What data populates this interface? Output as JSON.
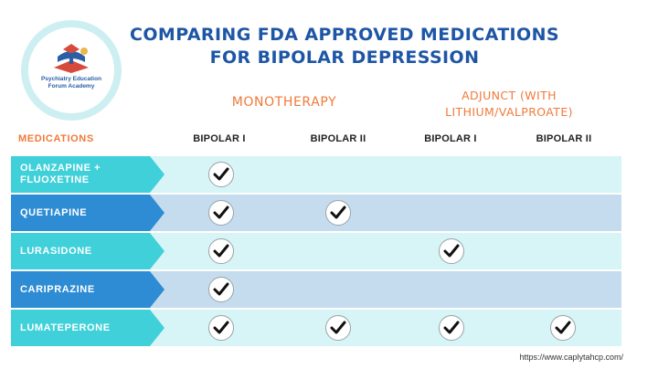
{
  "logo": {
    "line1": "Psychiatry Education",
    "line2": "Forum Academy"
  },
  "title": {
    "line1": "COMPARING FDA APPROVED MEDICATIONS",
    "line2": "FOR BIPOLAR DEPRESSION"
  },
  "groups": {
    "monotherapy": "MONOTHERAPY",
    "adjunct_line1": "ADJUNCT (WITH",
    "adjunct_line2": "LITHIUM/VALPROATE)"
  },
  "headers": {
    "medications": "MEDICATIONS",
    "columns": [
      "BIPOLAR I",
      "BIPOLAR II",
      "BIPOLAR I",
      "BIPOLAR II"
    ]
  },
  "rows": [
    {
      "label_line1": "OLANZAPINE +",
      "label_line2": "FLUOXETINE",
      "checks": [
        true,
        false,
        false,
        false
      ]
    },
    {
      "label_line1": "QUETIAPINE",
      "label_line2": "",
      "checks": [
        true,
        true,
        false,
        false
      ]
    },
    {
      "label_line1": "LURASIDONE",
      "label_line2": "",
      "checks": [
        true,
        false,
        true,
        false
      ]
    },
    {
      "label_line1": "CARIPRAZINE",
      "label_line2": "",
      "checks": [
        true,
        false,
        false,
        false
      ]
    },
    {
      "label_line1": "LUMATEPERONE",
      "label_line2": "",
      "checks": [
        true,
        true,
        true,
        true
      ]
    }
  ],
  "colors": {
    "title": "#1e56a6",
    "accent": "#f07a3a",
    "row_bg_light": "#d7f4f6",
    "row_bg_dark": "#c4dcee",
    "arrow_teal": "#3fd0d9",
    "arrow_blue": "#2e8cd4"
  },
  "source": "https://www.caplytahcp.com/"
}
